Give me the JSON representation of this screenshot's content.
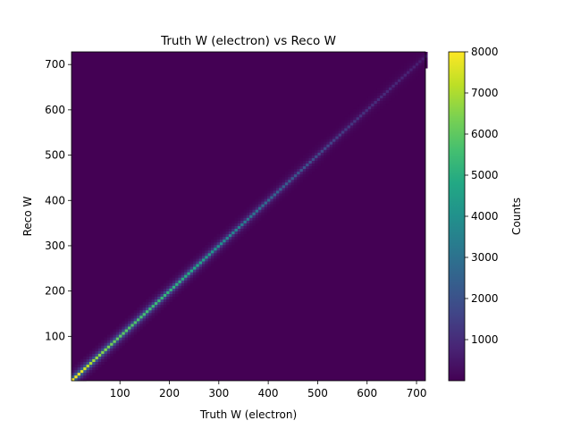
{
  "chart_data": {
    "type": "heatmap",
    "title": "Truth W (electron) vs Reco W",
    "xlabel": "Truth W (electron)",
    "ylabel": "Reco W",
    "xlim": [
      2,
      718
    ],
    "ylim": [
      2,
      728
    ],
    "x_ticks": [
      100,
      200,
      300,
      400,
      500,
      600,
      700
    ],
    "y_ticks": [
      100,
      200,
      300,
      400,
      500,
      600,
      700
    ],
    "colorbar": {
      "label": "Counts",
      "range": [
        0,
        8000
      ],
      "ticks": [
        1000,
        2000,
        3000,
        4000,
        5000,
        6000,
        7000,
        8000
      ],
      "colormap": "viridis"
    },
    "background_color": "#440154",
    "diagonal_profile": [
      {
        "x": 5,
        "counts": 7900
      },
      {
        "x": 20,
        "counts": 7800
      },
      {
        "x": 40,
        "counts": 7000
      },
      {
        "x": 60,
        "counts": 6600
      },
      {
        "x": 80,
        "counts": 6300
      },
      {
        "x": 100,
        "counts": 6000
      },
      {
        "x": 150,
        "counts": 5600
      },
      {
        "x": 200,
        "counts": 5200
      },
      {
        "x": 250,
        "counts": 4800
      },
      {
        "x": 300,
        "counts": 4000
      },
      {
        "x": 350,
        "counts": 3300
      },
      {
        "x": 400,
        "counts": 2700
      },
      {
        "x": 450,
        "counts": 2200
      },
      {
        "x": 500,
        "counts": 1800
      },
      {
        "x": 550,
        "counts": 1400
      },
      {
        "x": 600,
        "counts": 1100
      },
      {
        "x": 650,
        "counts": 900
      },
      {
        "x": 700,
        "counts": 700
      },
      {
        "x": 718,
        "counts": 600
      }
    ]
  }
}
